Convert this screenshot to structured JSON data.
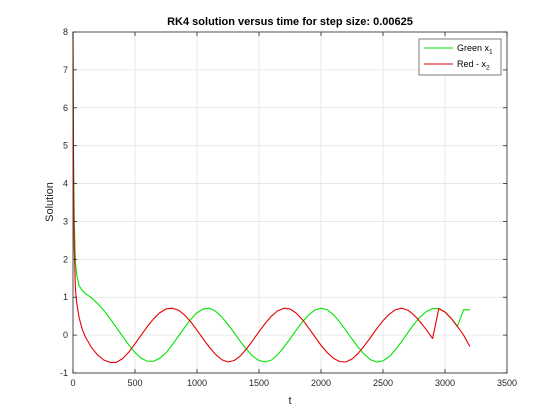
{
  "chart_data": {
    "type": "line",
    "title": "RK4 solution versus time for step size: 0.00625",
    "xlabel": "t",
    "ylabel": "Solution",
    "xlim": [
      0,
      3500
    ],
    "ylim": [
      -1,
      8
    ],
    "xticks": [
      0,
      500,
      1000,
      1500,
      2000,
      2500,
      3000,
      3500
    ],
    "yticks": [
      -1,
      0,
      1,
      2,
      3,
      4,
      5,
      6,
      7,
      8
    ],
    "grid": true,
    "legend_position": "top-right",
    "series": [
      {
        "name": "Green x",
        "legend_subscript": "1",
        "color": "#00e600",
        "x": [
          0,
          2,
          5,
          10,
          20,
          30,
          50,
          75,
          100,
          150,
          200,
          250,
          300,
          350,
          400,
          450,
          500,
          550,
          600,
          650,
          700,
          750,
          800,
          850,
          900,
          950,
          1000,
          1050,
          1100,
          1150,
          1200,
          1250,
          1300,
          1350,
          1400,
          1450,
          1500,
          1550,
          1600,
          1650,
          1700,
          1750,
          1800,
          1850,
          1900,
          1950,
          2000,
          2050,
          2100,
          2150,
          2200,
          2250,
          2300,
          2350,
          2400,
          2450,
          2500,
          2550,
          2600,
          2650,
          2700,
          2750,
          2800,
          2850,
          2900,
          2950,
          3000,
          3050,
          3100,
          3150,
          3200
        ],
        "y": [
          8,
          6.5,
          4.5,
          3.0,
          1.9,
          1.6,
          1.3,
          1.18,
          1.1,
          0.98,
          0.83,
          0.65,
          0.43,
          0.2,
          -0.03,
          -0.26,
          -0.46,
          -0.61,
          -0.69,
          -0.69,
          -0.61,
          -0.47,
          -0.26,
          -0.03,
          0.2,
          0.42,
          0.59,
          0.69,
          0.71,
          0.63,
          0.48,
          0.28,
          0.06,
          -0.17,
          -0.38,
          -0.56,
          -0.67,
          -0.71,
          -0.66,
          -0.52,
          -0.32,
          -0.1,
          0.13,
          0.35,
          0.53,
          0.66,
          0.71,
          0.67,
          0.54,
          0.35,
          0.13,
          -0.1,
          -0.32,
          -0.51,
          -0.65,
          -0.71,
          -0.68,
          -0.57,
          -0.39,
          -0.17,
          0.06,
          0.29,
          0.48,
          0.62,
          0.7,
          0.7,
          0.61,
          0.44,
          0.23,
          0.67,
          0.66
        ]
      },
      {
        "name": "Red - x",
        "legend_subscript": "2",
        "color": "#e60000",
        "x": [
          0,
          2,
          5,
          10,
          20,
          30,
          50,
          75,
          100,
          150,
          200,
          250,
          300,
          350,
          400,
          450,
          500,
          550,
          600,
          650,
          700,
          750,
          800,
          850,
          900,
          950,
          1000,
          1050,
          1100,
          1150,
          1200,
          1250,
          1300,
          1350,
          1400,
          1450,
          1500,
          1550,
          1600,
          1650,
          1700,
          1750,
          1800,
          1850,
          1900,
          1950,
          2000,
          2050,
          2100,
          2150,
          2200,
          2250,
          2300,
          2350,
          2400,
          2450,
          2500,
          2550,
          2600,
          2650,
          2700,
          2750,
          2800,
          2850,
          2900,
          2950,
          3000,
          3050,
          3100,
          3150,
          3200
        ],
        "y": [
          8,
          6.0,
          3.8,
          2.3,
          1.2,
          0.85,
          0.45,
          0.15,
          -0.05,
          -0.33,
          -0.53,
          -0.66,
          -0.72,
          -0.72,
          -0.62,
          -0.45,
          -0.23,
          0.0,
          0.23,
          0.43,
          0.59,
          0.69,
          0.71,
          0.66,
          0.53,
          0.35,
          0.13,
          -0.1,
          -0.32,
          -0.51,
          -0.65,
          -0.71,
          -0.67,
          -0.55,
          -0.36,
          -0.14,
          0.09,
          0.31,
          0.5,
          0.64,
          0.71,
          0.69,
          0.58,
          0.41,
          0.19,
          -0.04,
          -0.27,
          -0.46,
          -0.61,
          -0.7,
          -0.71,
          -0.63,
          -0.48,
          -0.28,
          -0.06,
          0.17,
          0.38,
          0.55,
          0.67,
          0.71,
          0.66,
          0.53,
          0.35,
          0.14,
          -0.09,
          0.7,
          0.61,
          0.44,
          0.23,
          0.0,
          -0.3
        ]
      }
    ]
  }
}
